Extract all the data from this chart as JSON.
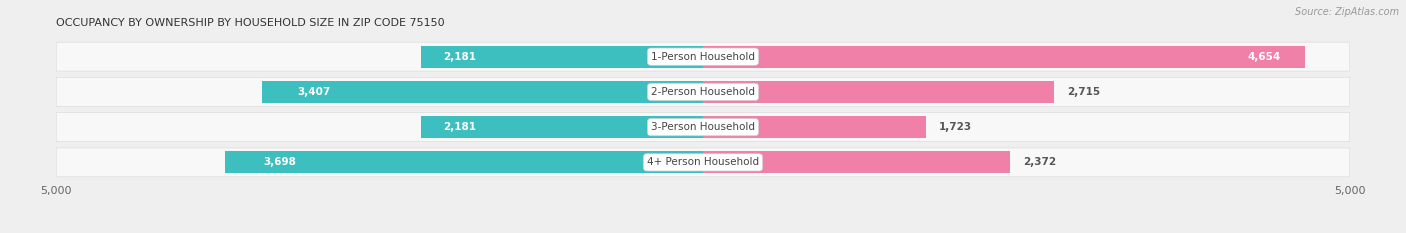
{
  "title": "OCCUPANCY BY OWNERSHIP BY HOUSEHOLD SIZE IN ZIP CODE 75150",
  "source": "Source: ZipAtlas.com",
  "categories": [
    "1-Person Household",
    "2-Person Household",
    "3-Person Household",
    "4+ Person Household"
  ],
  "owner_values": [
    2181,
    3407,
    2181,
    3698
  ],
  "renter_values": [
    4654,
    2715,
    1723,
    2372
  ],
  "max_val": 5000,
  "owner_color": "#3DBFBF",
  "renter_color": "#F080A8",
  "bg_color": "#efefef",
  "row_bg_color": "#f8f8f8",
  "row_border_color": "#dddddd",
  "label_white": "#ffffff",
  "label_dark": "#555555",
  "axis_label_color": "#666666",
  "title_color": "#333333",
  "source_color": "#999999",
  "center_label_color": "#444444",
  "figsize": [
    14.06,
    2.33
  ],
  "dpi": 100
}
